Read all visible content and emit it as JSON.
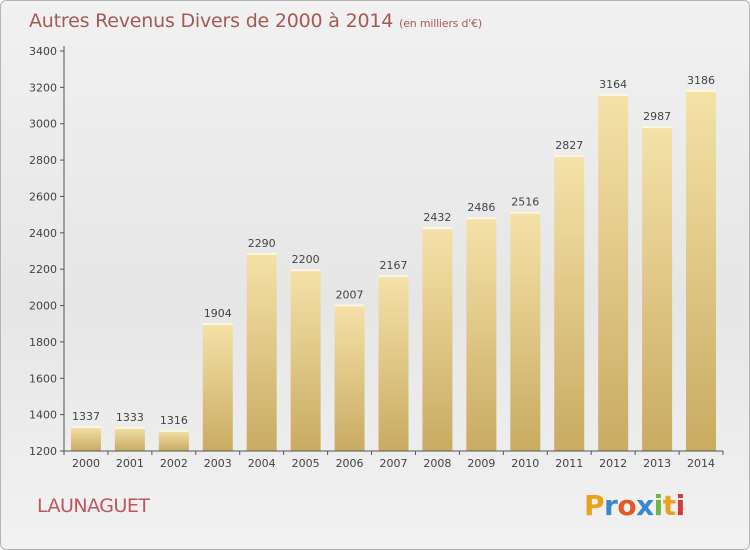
{
  "title": "Autres Revenus Divers de 2000 à 2014",
  "subtitle": "(en milliers d'€)",
  "commune": "LAUNAGUET",
  "logo": {
    "letters": [
      "P",
      "r",
      "o",
      "x",
      "i",
      "t",
      "i"
    ],
    "colors": [
      "#e8a21c",
      "#3d87cf",
      "#e05a2a",
      "#3d87cf",
      "#6db53c",
      "#e8a21c",
      "#d33a3a"
    ]
  },
  "colors": {
    "title": "#a55a54",
    "commune": "#c0565e",
    "bar_light": "#f5e2a8",
    "bar_dark": "#c9ab62",
    "axis": "#555555"
  },
  "chart_data": {
    "type": "bar",
    "title": "Autres Revenus Divers de 2000 à 2014",
    "categories": [
      "2000",
      "2001",
      "2002",
      "2003",
      "2004",
      "2005",
      "2006",
      "2007",
      "2008",
      "2009",
      "2010",
      "2011",
      "2012",
      "2013",
      "2014"
    ],
    "values": [
      1337,
      1333,
      1316,
      1904,
      2290,
      2200,
      2007,
      2167,
      2432,
      2486,
      2516,
      2827,
      3164,
      2987,
      3186
    ],
    "ylim": [
      1200,
      3400
    ],
    "yticks": [
      1200,
      1400,
      1600,
      1800,
      2000,
      2200,
      2400,
      2600,
      2800,
      3000,
      3200,
      3400
    ],
    "grid": false,
    "data_labels": true
  }
}
